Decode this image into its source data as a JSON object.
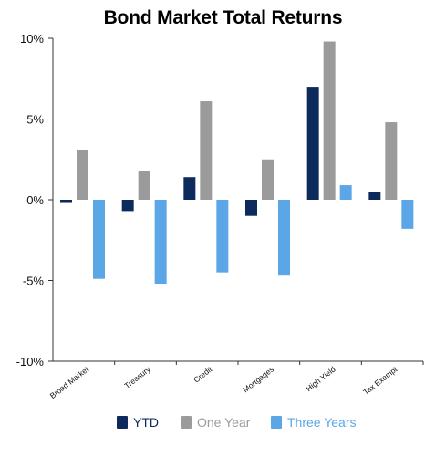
{
  "chart_data": {
    "type": "bar",
    "title": "Bond Market Total Returns",
    "xlabel": "",
    "ylabel": "",
    "categories": [
      "Broad Market",
      "Treasury",
      "Credit",
      "Mortgages",
      "High Yield",
      "Tax Exempt"
    ],
    "series": [
      {
        "name": "YTD",
        "color": "#0d2a5c",
        "values": [
          -0.2,
          -0.7,
          1.4,
          -1.0,
          7.0,
          0.5
        ]
      },
      {
        "name": "One Year",
        "color": "#9b9b9b",
        "values": [
          3.1,
          1.8,
          6.1,
          2.5,
          9.8,
          4.8
        ]
      },
      {
        "name": "Three Years",
        "color": "#5aa6e6",
        "values": [
          -4.9,
          -5.2,
          -4.5,
          -4.7,
          0.9,
          -1.8
        ]
      }
    ],
    "ylim": [
      -10,
      10
    ],
    "yticks": [
      {
        "value": 10,
        "label": "10%"
      },
      {
        "value": 5,
        "label": "5%"
      },
      {
        "value": 0,
        "label": "0%"
      },
      {
        "value": -5,
        "label": "-5%"
      },
      {
        "value": -10,
        "label": "-10%"
      }
    ],
    "grid": false,
    "legend_position": "bottom"
  }
}
